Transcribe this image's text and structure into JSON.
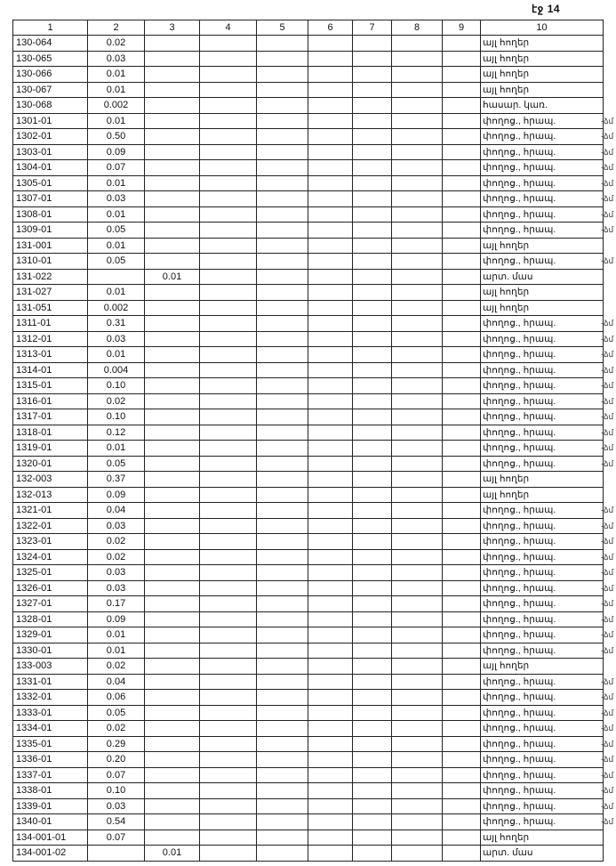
{
  "page_number": "էջ 14",
  "columns": [
    "1",
    "2",
    "3",
    "4",
    "5",
    "6",
    "7",
    "8",
    "9",
    "10"
  ],
  "margin_mark": "-ձմ",
  "rows": [
    {
      "c1": "130-064",
      "c2": "0.02",
      "c3": "",
      "c10": "այլ հողեր"
    },
    {
      "c1": "130-065",
      "c2": "0.03",
      "c3": "",
      "c10": "այլ հողեր"
    },
    {
      "c1": "130-066",
      "c2": "0.01",
      "c3": "",
      "c10": "այլ հողեր"
    },
    {
      "c1": "130-067",
      "c2": "0.01",
      "c3": "",
      "c10": "այլ հողեր"
    },
    {
      "c1": "130-068",
      "c2": "0.002",
      "c3": "",
      "c10": "հասար. կառ."
    },
    {
      "c1": "1301-01",
      "c2": "0.01",
      "c3": "",
      "c10": "փողոց., հրապ.",
      "mark": true
    },
    {
      "c1": "1302-01",
      "c2": "0.50",
      "c3": "",
      "c10": "փողոց., հրապ.",
      "mark": true
    },
    {
      "c1": "1303-01",
      "c2": "0.09",
      "c3": "",
      "c10": "փողոց., հրապ.",
      "mark": true
    },
    {
      "c1": "1304-01",
      "c2": "0.07",
      "c3": "",
      "c10": "փողոց., հրապ.",
      "mark": true
    },
    {
      "c1": "1305-01",
      "c2": "0.01",
      "c3": "",
      "c10": "փողոց., հրապ.",
      "mark": true
    },
    {
      "c1": "1307-01",
      "c2": "0.03",
      "c3": "",
      "c10": "փողոց., հրապ.",
      "mark": true
    },
    {
      "c1": "1308-01",
      "c2": "0.01",
      "c3": "",
      "c10": "փողոց., հրապ.",
      "mark": true
    },
    {
      "c1": "1309-01",
      "c2": "0.05",
      "c3": "",
      "c10": "փողոց., հրապ.",
      "mark": true
    },
    {
      "c1": "131-001",
      "c2": "0.01",
      "c3": "",
      "c10": "այլ հողեր"
    },
    {
      "c1": "1310-01",
      "c2": "0.05",
      "c3": "",
      "c10": "փողոց., հրապ.",
      "mark": true
    },
    {
      "c1": "131-022",
      "c2": "",
      "c3": "0.01",
      "c10": "արտ. մաս"
    },
    {
      "c1": "131-027",
      "c2": "0.01",
      "c3": "",
      "c10": "այլ հողեր"
    },
    {
      "c1": "131-051",
      "c2": "0.002",
      "c3": "",
      "c10": "այլ հողեր"
    },
    {
      "c1": "1311-01",
      "c2": "0.31",
      "c3": "",
      "c10": "փողոց., հրապ.",
      "mark": true
    },
    {
      "c1": "1312-01",
      "c2": "0.03",
      "c3": "",
      "c10": "փողոց., հրապ.",
      "mark": true
    },
    {
      "c1": "1313-01",
      "c2": "0.01",
      "c3": "",
      "c10": "փողոց., հրապ.",
      "mark": true
    },
    {
      "c1": "1314-01",
      "c2": "0.004",
      "c3": "",
      "c10": "փողոց., հրապ.",
      "mark": true
    },
    {
      "c1": "1315-01",
      "c2": "0.10",
      "c3": "",
      "c10": "փողոց., հրապ.",
      "mark": true
    },
    {
      "c1": "1316-01",
      "c2": "0.02",
      "c3": "",
      "c10": "փողոց., հրապ.",
      "mark": true
    },
    {
      "c1": "1317-01",
      "c2": "0.10",
      "c3": "",
      "c10": "փողոց., հրապ.",
      "mark": true
    },
    {
      "c1": "1318-01",
      "c2": "0.12",
      "c3": "",
      "c10": "փողոց., հրապ.",
      "mark": true
    },
    {
      "c1": "1319-01",
      "c2": "0.01",
      "c3": "",
      "c10": "փողոց., հրապ.",
      "mark": true
    },
    {
      "c1": "1320-01",
      "c2": "0.05",
      "c3": "",
      "c10": "փողոց., հրապ.",
      "mark": true
    },
    {
      "c1": "132-003",
      "c2": "0.37",
      "c3": "",
      "c10": "այլ հողեր"
    },
    {
      "c1": "132-013",
      "c2": "0.09",
      "c3": "",
      "c10": "այլ հողեր"
    },
    {
      "c1": "1321-01",
      "c2": "0.04",
      "c3": "",
      "c10": "փողոց., հրապ.",
      "mark": true
    },
    {
      "c1": "1322-01",
      "c2": "0.03",
      "c3": "",
      "c10": "փողոց., հրապ.",
      "mark": true
    },
    {
      "c1": "1323-01",
      "c2": "0.02",
      "c3": "",
      "c10": "փողոց., հրապ.",
      "mark": true
    },
    {
      "c1": "1324-01",
      "c2": "0.02",
      "c3": "",
      "c10": "փողոց., հրապ.",
      "mark": true
    },
    {
      "c1": "1325-01",
      "c2": "0.03",
      "c3": "",
      "c10": "փողոց., հրապ.",
      "mark": true
    },
    {
      "c1": "1326-01",
      "c2": "0.03",
      "c3": "",
      "c10": "փողոց., հրապ.",
      "mark": true
    },
    {
      "c1": "1327-01",
      "c2": "0.17",
      "c3": "",
      "c10": "փողոց., հրապ.",
      "mark": true
    },
    {
      "c1": "1328-01",
      "c2": "0.09",
      "c3": "",
      "c10": "փողոց., հրապ.",
      "mark": true
    },
    {
      "c1": "1329-01",
      "c2": "0.01",
      "c3": "",
      "c10": "փողոց., հրապ.",
      "mark": true
    },
    {
      "c1": "1330-01",
      "c2": "0.01",
      "c3": "",
      "c10": "փողոց., հրապ.",
      "mark": true
    },
    {
      "c1": "133-003",
      "c2": "0.02",
      "c3": "",
      "c10": "այլ հողեր"
    },
    {
      "c1": "1331-01",
      "c2": "0.04",
      "c3": "",
      "c10": "փողոց., հրապ.",
      "mark": true
    },
    {
      "c1": "1332-01",
      "c2": "0.06",
      "c3": "",
      "c10": "փողոց., հրապ.",
      "mark": true
    },
    {
      "c1": "1333-01",
      "c2": "0.05",
      "c3": "",
      "c10": "փողոց., հրապ.",
      "mark": true
    },
    {
      "c1": "1334-01",
      "c2": "0.02",
      "c3": "",
      "c10": "փողոց., հրապ.",
      "mark": true
    },
    {
      "c1": "1335-01",
      "c2": "0.29",
      "c3": "",
      "c10": "փողոց., հրապ.",
      "mark": true
    },
    {
      "c1": "1336-01",
      "c2": "0.20",
      "c3": "",
      "c10": "փողոց., հրապ.",
      "mark": true
    },
    {
      "c1": "1337-01",
      "c2": "0.07",
      "c3": "",
      "c10": "փողոց., հրապ.",
      "mark": true
    },
    {
      "c1": "1338-01",
      "c2": "0.10",
      "c3": "",
      "c10": "փողոց., հրապ.",
      "mark": true
    },
    {
      "c1": "1339-01",
      "c2": "0.03",
      "c3": "",
      "c10": "փողոց., հրապ.",
      "mark": true
    },
    {
      "c1": "1340-01",
      "c2": "0.54",
      "c3": "",
      "c10": "փողոց., հրապ.",
      "mark": true
    },
    {
      "c1": "134-001-01",
      "c2": "0.07",
      "c3": "",
      "c10": "այլ հողեր"
    },
    {
      "c1": "134-001-02",
      "c2": "",
      "c3": "0.01",
      "c10": "արտ. մաս"
    }
  ]
}
